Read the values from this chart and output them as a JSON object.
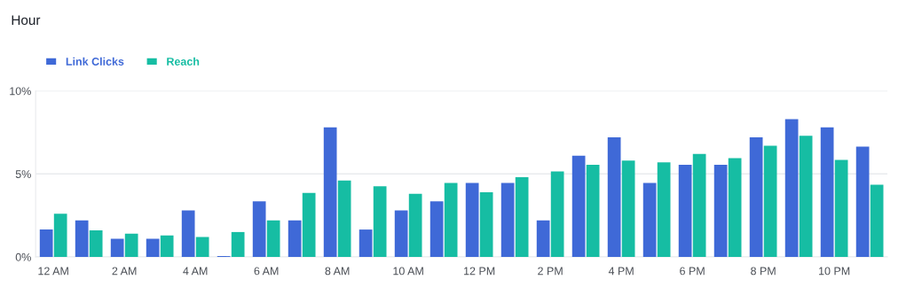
{
  "chart_data": {
    "type": "bar",
    "title": "Hour",
    "categories": [
      "12 AM",
      null,
      "2 AM",
      null,
      "4 AM",
      null,
      "6 AM",
      null,
      "8 AM",
      null,
      "10 AM",
      null,
      "12 PM",
      null,
      "2 PM",
      null,
      "4 PM",
      null,
      "6 PM",
      null,
      "8 PM",
      null,
      "10 PM",
      null
    ],
    "series": [
      {
        "name": "Link Clicks",
        "color": "#3f69d7",
        "values": [
          1.65,
          2.2,
          1.1,
          1.1,
          2.8,
          0.05,
          3.35,
          2.2,
          7.8,
          1.65,
          2.8,
          3.35,
          4.45,
          4.45,
          2.2,
          6.1,
          7.2,
          4.45,
          5.55,
          5.55,
          7.2,
          8.3,
          7.8,
          6.65
        ]
      },
      {
        "name": "Reach",
        "color": "#16bda3",
        "values": [
          2.6,
          1.6,
          1.4,
          1.3,
          1.2,
          1.5,
          2.2,
          3.85,
          4.6,
          4.25,
          3.8,
          4.45,
          3.9,
          4.8,
          5.15,
          5.55,
          5.8,
          5.7,
          6.2,
          5.95,
          6.7,
          7.3,
          5.85,
          4.35
        ]
      }
    ],
    "ylim": [
      0,
      10
    ],
    "yticks": [
      {
        "value": 0,
        "label": "0%"
      },
      {
        "value": 5,
        "label": "5%"
      },
      {
        "value": 10,
        "label": "10%"
      }
    ],
    "grid": "y",
    "legend": "top left"
  }
}
